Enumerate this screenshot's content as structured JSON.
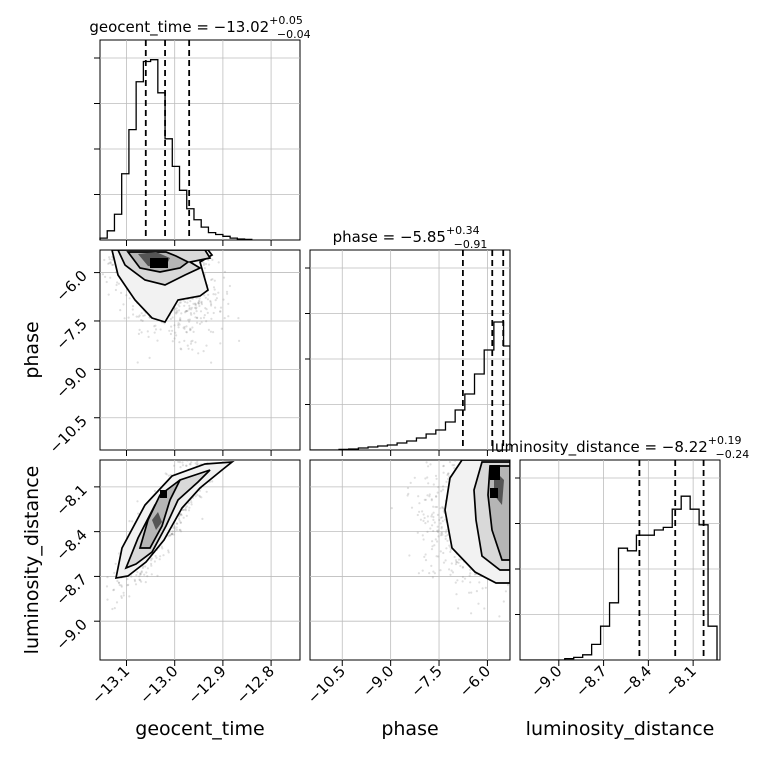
{
  "chart_data": {
    "type": "corner",
    "parameters": [
      "geocent_time",
      "phase",
      "luminosity_distance"
    ],
    "titles": {
      "geocent_time": {
        "prefix": "geocent_time = −13.02",
        "sup": "+0.05",
        "sub": "−0.04"
      },
      "phase": {
        "prefix": "phase = −5.85",
        "sup": "+0.34",
        "sub": "−0.91"
      },
      "luminosity_distance": {
        "prefix": "luminosity_distance = −8.22",
        "sup": "+0.19",
        "sub": "−0.24"
      }
    },
    "axes": {
      "geocent_time": {
        "range": [
          -13.155,
          -12.74
        ],
        "ticks": [
          -13.1,
          -13.0,
          -12.9,
          -12.8
        ],
        "tick_labels": [
          "−13.1",
          "−13.0",
          "−12.9",
          "−12.8"
        ]
      },
      "phase": {
        "range": [
          -11.5,
          -5.3
        ],
        "ticks": [
          -10.5,
          -9.0,
          -7.5,
          -6.0
        ],
        "tick_labels": [
          "−10.5",
          "−9.0",
          "−7.5",
          "−6.0"
        ]
      },
      "luminosity_distance": {
        "range": [
          -9.26,
          -7.92
        ],
        "ticks": [
          -9.0,
          -8.7,
          -8.4,
          -8.1
        ],
        "tick_labels": [
          "−9.0",
          "−8.7",
          "−8.4",
          "−8.1"
        ]
      }
    },
    "histograms": {
      "geocent_time": {
        "edges": [
          -13.155,
          -13.14,
          -13.125,
          -13.11,
          -13.095,
          -13.08,
          -13.065,
          -13.05,
          -13.035,
          -13.02,
          -13.005,
          -12.99,
          -12.975,
          -12.96,
          -12.945,
          -12.93,
          -12.915,
          -12.9,
          -12.885,
          -12.87,
          -12.855,
          -12.84
        ],
        "values": [
          1,
          5,
          14,
          36,
          60,
          86,
          97,
          98,
          80,
          55,
          40,
          27,
          17,
          11,
          7,
          4,
          3,
          2,
          1,
          0.5,
          0.3
        ]
      },
      "phase": {
        "edges": [
          -11.5,
          -11.2,
          -10.9,
          -10.6,
          -10.3,
          -10.0,
          -9.7,
          -9.4,
          -9.1,
          -8.8,
          -8.5,
          -8.2,
          -7.9,
          -7.6,
          -7.3,
          -7.0,
          -6.7,
          -6.4,
          -6.1,
          -5.8,
          -5.5,
          -5.3
        ],
        "values": [
          0,
          0,
          0,
          0.3,
          0.5,
          1,
          1.5,
          2,
          2.5,
          3.5,
          4.5,
          6,
          8,
          10,
          14,
          20,
          28,
          38,
          50,
          64,
          52
        ]
      },
      "luminosity_distance": {
        "edges": [
          -9.26,
          -9.2,
          -9.14,
          -9.08,
          -9.02,
          -8.96,
          -8.9,
          -8.84,
          -8.78,
          -8.72,
          -8.66,
          -8.6,
          -8.54,
          -8.48,
          -8.42,
          -8.36,
          -8.3,
          -8.24,
          -8.18,
          -8.12,
          -8.06,
          -8.0,
          -7.94
        ],
        "values": [
          0,
          0,
          0,
          0,
          0,
          0.5,
          1,
          2,
          6,
          13,
          22,
          43,
          42,
          48,
          48,
          50,
          51,
          58,
          63,
          58,
          52,
          13
        ]
      }
    },
    "quantile_lines": {
      "geocent_time": [
        -13.06,
        -13.02,
        -12.97
      ],
      "phase": [
        -6.76,
        -5.85,
        -5.51
      ],
      "luminosity_distance": [
        -8.46,
        -8.22,
        -8.03
      ]
    },
    "scatter_2d": {
      "phase_vs_geocent_time": {
        "center": [
          -13.02,
          -6.3
        ],
        "spread": [
          0.055,
          0.9
        ],
        "correlation": -0.35,
        "contour_center": [
          -13.03,
          -5.9
        ]
      },
      "luminosity_distance_vs_geocent_time": {
        "center": [
          -13.02,
          -8.3
        ],
        "spread": [
          0.045,
          0.22
        ],
        "correlation": 0.88
      },
      "luminosity_distance_vs_phase": {
        "center": [
          -6.2,
          -8.3
        ],
        "spread": [
          0.9,
          0.22
        ],
        "correlation": 0.0
      }
    },
    "grid": true,
    "colors": {
      "line": "#000000",
      "scatter": "#808080",
      "grid": "#bdbdbd"
    }
  }
}
